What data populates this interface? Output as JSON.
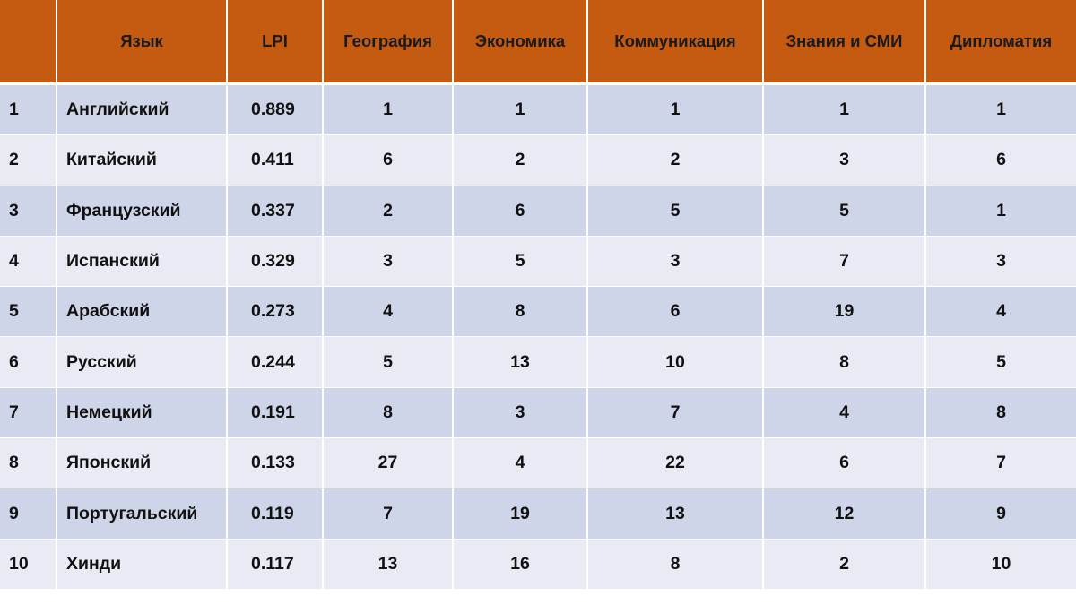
{
  "table": {
    "headers": [
      "",
      "Язык",
      "LPI",
      "География",
      "Экономика",
      "Коммуникация",
      "Знания и СМИ",
      "Дипломатия"
    ],
    "rows": [
      [
        "1",
        "Английский",
        "0.889",
        "1",
        "1",
        "1",
        "1",
        "1"
      ],
      [
        "2",
        "Китайский",
        "0.411",
        "6",
        "2",
        "2",
        "3",
        "6"
      ],
      [
        "3",
        "Французский",
        "0.337",
        "2",
        "6",
        "5",
        "5",
        "1"
      ],
      [
        "4",
        "Испанский",
        "0.329",
        "3",
        "5",
        "3",
        "7",
        "3"
      ],
      [
        "5",
        "Арабский",
        "0.273",
        "4",
        "8",
        "6",
        "19",
        "4"
      ],
      [
        "6",
        "Русский",
        "0.244",
        "5",
        "13",
        "10",
        "8",
        "5"
      ],
      [
        "7",
        "Немецкий",
        "0.191",
        "8",
        "3",
        "7",
        "4",
        "8"
      ],
      [
        "8",
        "Японский",
        "0.133",
        "27",
        "4",
        "22",
        "6",
        "7"
      ],
      [
        "9",
        "Португальский",
        "0.119",
        "7",
        "19",
        "13",
        "12",
        "9"
      ],
      [
        "10",
        "Хинди",
        "0.117",
        "13",
        "16",
        "8",
        "2",
        "10"
      ]
    ]
  },
  "colors": {
    "header_bg": "#c55a11",
    "row_odd_bg": "#cfd5e8",
    "row_even_bg": "#e9ebf4",
    "text": "#111111"
  }
}
